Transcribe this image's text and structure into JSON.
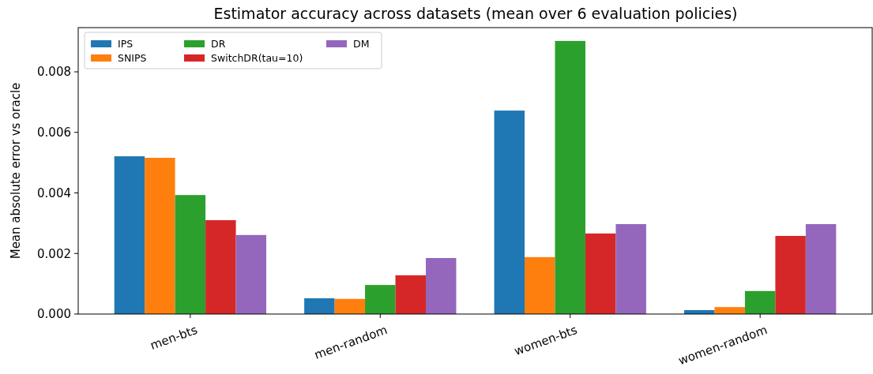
{
  "chart_data": {
    "type": "bar",
    "title": "Estimator accuracy across datasets (mean over 6 evaluation policies)",
    "ylabel": "Mean absolute error vs oracle",
    "categories": [
      "men-bts",
      "men-random",
      "women-bts",
      "women-random"
    ],
    "series": [
      {
        "name": "IPS",
        "color": "#1f77b4",
        "values": [
          0.00521,
          0.00052,
          0.00672,
          0.00013
        ]
      },
      {
        "name": "SNIPS",
        "color": "#ff7f0e",
        "values": [
          0.00516,
          0.0005,
          0.00188,
          0.00023
        ]
      },
      {
        "name": "DR",
        "color": "#2ca02c",
        "values": [
          0.00393,
          0.00096,
          0.00902,
          0.00076
        ]
      },
      {
        "name": "SwitchDR(tau=10)",
        "color": "#d62728",
        "values": [
          0.0031,
          0.00128,
          0.00266,
          0.00258
        ]
      },
      {
        "name": "DM",
        "color": "#9467bd",
        "values": [
          0.00261,
          0.00185,
          0.00297,
          0.00297
        ]
      }
    ],
    "ylim": [
      0,
      0.00946
    ],
    "yticks": [
      {
        "value": 0,
        "label": "0.000"
      },
      {
        "value": 0.002,
        "label": "0.002"
      },
      {
        "value": 0.004,
        "label": "0.004"
      },
      {
        "value": 0.006,
        "label": "0.006"
      },
      {
        "value": 0.008,
        "label": "0.008"
      }
    ],
    "legend": "top left",
    "grid": false
  }
}
